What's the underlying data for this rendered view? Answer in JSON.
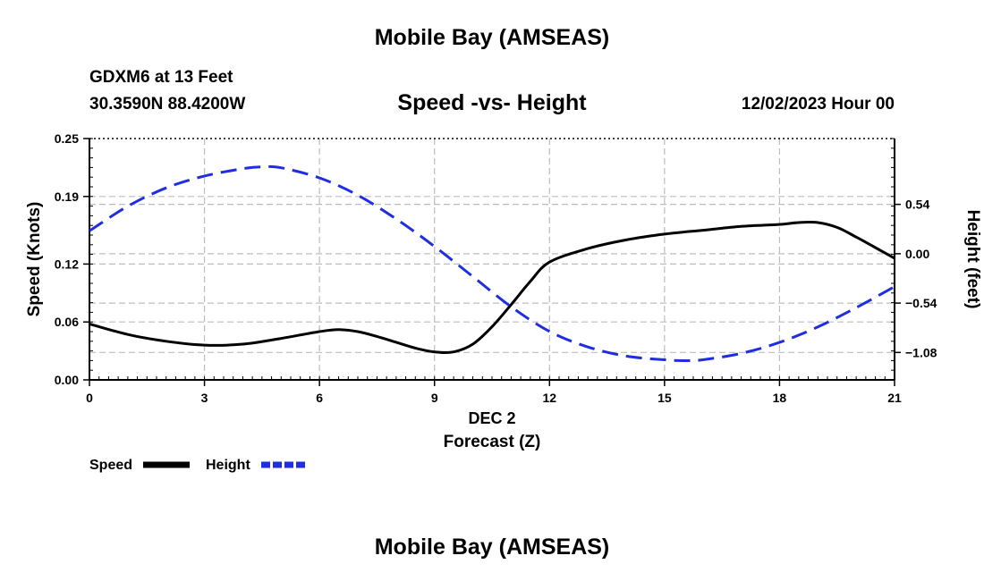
{
  "page_title": "Mobile Bay (AMSEAS)",
  "page_title_repeat": "Mobile Bay (AMSEAS)",
  "station": "GDXM6 at 13 Feet",
  "coords": "30.3590N  88.4200W",
  "datetime": "12/02/2023 Hour 00",
  "chart_data": {
    "type": "line",
    "title": "Speed -vs- Height",
    "xlabel": "Forecast (Z)",
    "xlabel_date": "DEC 2",
    "ylabel_left": "Speed (Knots)",
    "ylabel_right": "Height (feet)",
    "x_ticks": [
      0,
      3,
      6,
      9,
      12,
      15,
      18,
      21
    ],
    "x_tick_labels": [
      "0",
      "3",
      "6",
      "9",
      "12",
      "15",
      "18",
      "21"
    ],
    "xlim": [
      0,
      21
    ],
    "ylim_left": [
      0,
      0.25
    ],
    "ylim_right": [
      -1.38,
      1.26
    ],
    "left_ticks": [
      0.0,
      0.06,
      0.12,
      0.19,
      0.25
    ],
    "left_tick_labels": [
      "0.00",
      "0.06",
      "0.12",
      "0.19",
      "0.25"
    ],
    "right_ticks": [
      -1.08,
      -0.54,
      0.0,
      0.54
    ],
    "right_tick_labels": [
      "−1.08",
      "−0.54",
      "0.00",
      "0.54"
    ],
    "grid": true,
    "legend_position": "bottom-left",
    "series": [
      {
        "name": "Speed",
        "axis": "left",
        "color": "#000000",
        "dash": "solid",
        "x": [
          0,
          1,
          2,
          3,
          4,
          5,
          6,
          6.5,
          7,
          7.5,
          8,
          8.5,
          9,
          9.5,
          10,
          10.5,
          11,
          11.5,
          12,
          13,
          14,
          15,
          16,
          17,
          18,
          18.5,
          19,
          19.5,
          20,
          20.5,
          21
        ],
        "values": [
          0.058,
          0.047,
          0.04,
          0.036,
          0.037,
          0.043,
          0.05,
          0.052,
          0.05,
          0.045,
          0.039,
          0.033,
          0.029,
          0.029,
          0.037,
          0.055,
          0.078,
          0.102,
          0.122,
          0.136,
          0.145,
          0.151,
          0.155,
          0.159,
          0.161,
          0.163,
          0.163,
          0.158,
          0.148,
          0.137,
          0.126
        ]
      },
      {
        "name": "Height",
        "axis": "right",
        "color": "#1f2ee0",
        "dash": "dashed",
        "x": [
          0,
          1,
          2,
          3,
          4,
          4.5,
          5,
          6,
          7,
          8,
          9,
          10,
          11,
          12,
          13,
          14,
          15,
          15.5,
          16,
          17,
          18,
          19,
          20,
          21
        ],
        "values": [
          0.25,
          0.52,
          0.72,
          0.85,
          0.93,
          0.95,
          0.94,
          0.83,
          0.64,
          0.38,
          0.08,
          -0.25,
          -0.58,
          -0.85,
          -1.02,
          -1.12,
          -1.16,
          -1.17,
          -1.16,
          -1.09,
          -0.97,
          -0.8,
          -0.59,
          -0.36
        ]
      }
    ],
    "legend": [
      {
        "name": "Speed",
        "label": "Speed"
      },
      {
        "name": "Height",
        "label": "Height"
      }
    ]
  }
}
